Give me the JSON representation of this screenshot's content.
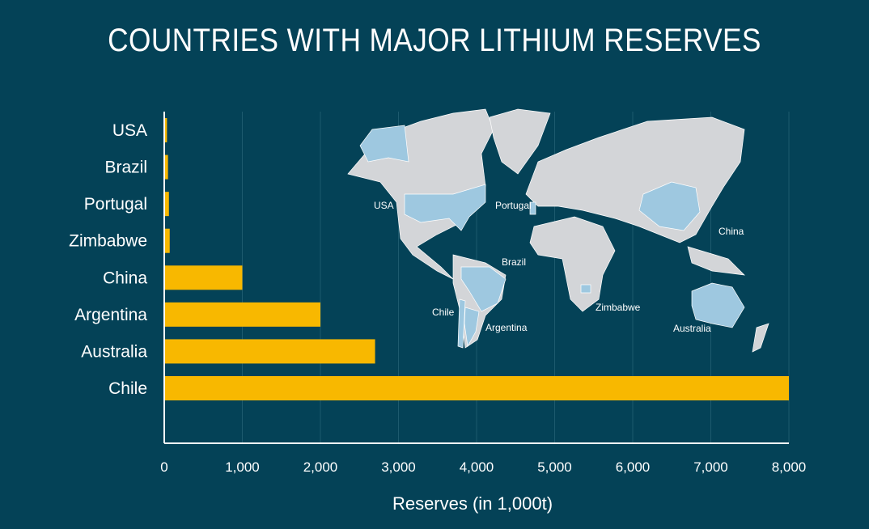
{
  "chart_data": {
    "type": "bar",
    "orientation": "horizontal",
    "title": "COUNTRIES WITH MAJOR LITHIUM RESERVES",
    "xlabel": "Reserves (in 1,000t)",
    "ylabel": "",
    "categories": [
      "USA",
      "Brazil",
      "Portugal",
      "Zimbabwe",
      "China",
      "Argentina",
      "Australia",
      "Chile"
    ],
    "values": [
      35,
      48,
      60,
      70,
      1000,
      2000,
      2700,
      8000
    ],
    "xlim": [
      0,
      8000
    ],
    "xticks": [
      "0",
      "1,000",
      "2,000",
      "3,000",
      "4,000",
      "5,000",
      "6,000",
      "7,000",
      "8,000"
    ],
    "grid": true,
    "colors": {
      "background": "#044257",
      "bar": "#f8b800",
      "map_land": "#d3d5d8",
      "map_highlight": "#9ec8e0",
      "text": "#ffffff"
    },
    "map_labels": [
      "USA",
      "Portugal",
      "China",
      "Brazil",
      "Chile",
      "Argentina",
      "Zimbabwe",
      "Australia"
    ]
  }
}
